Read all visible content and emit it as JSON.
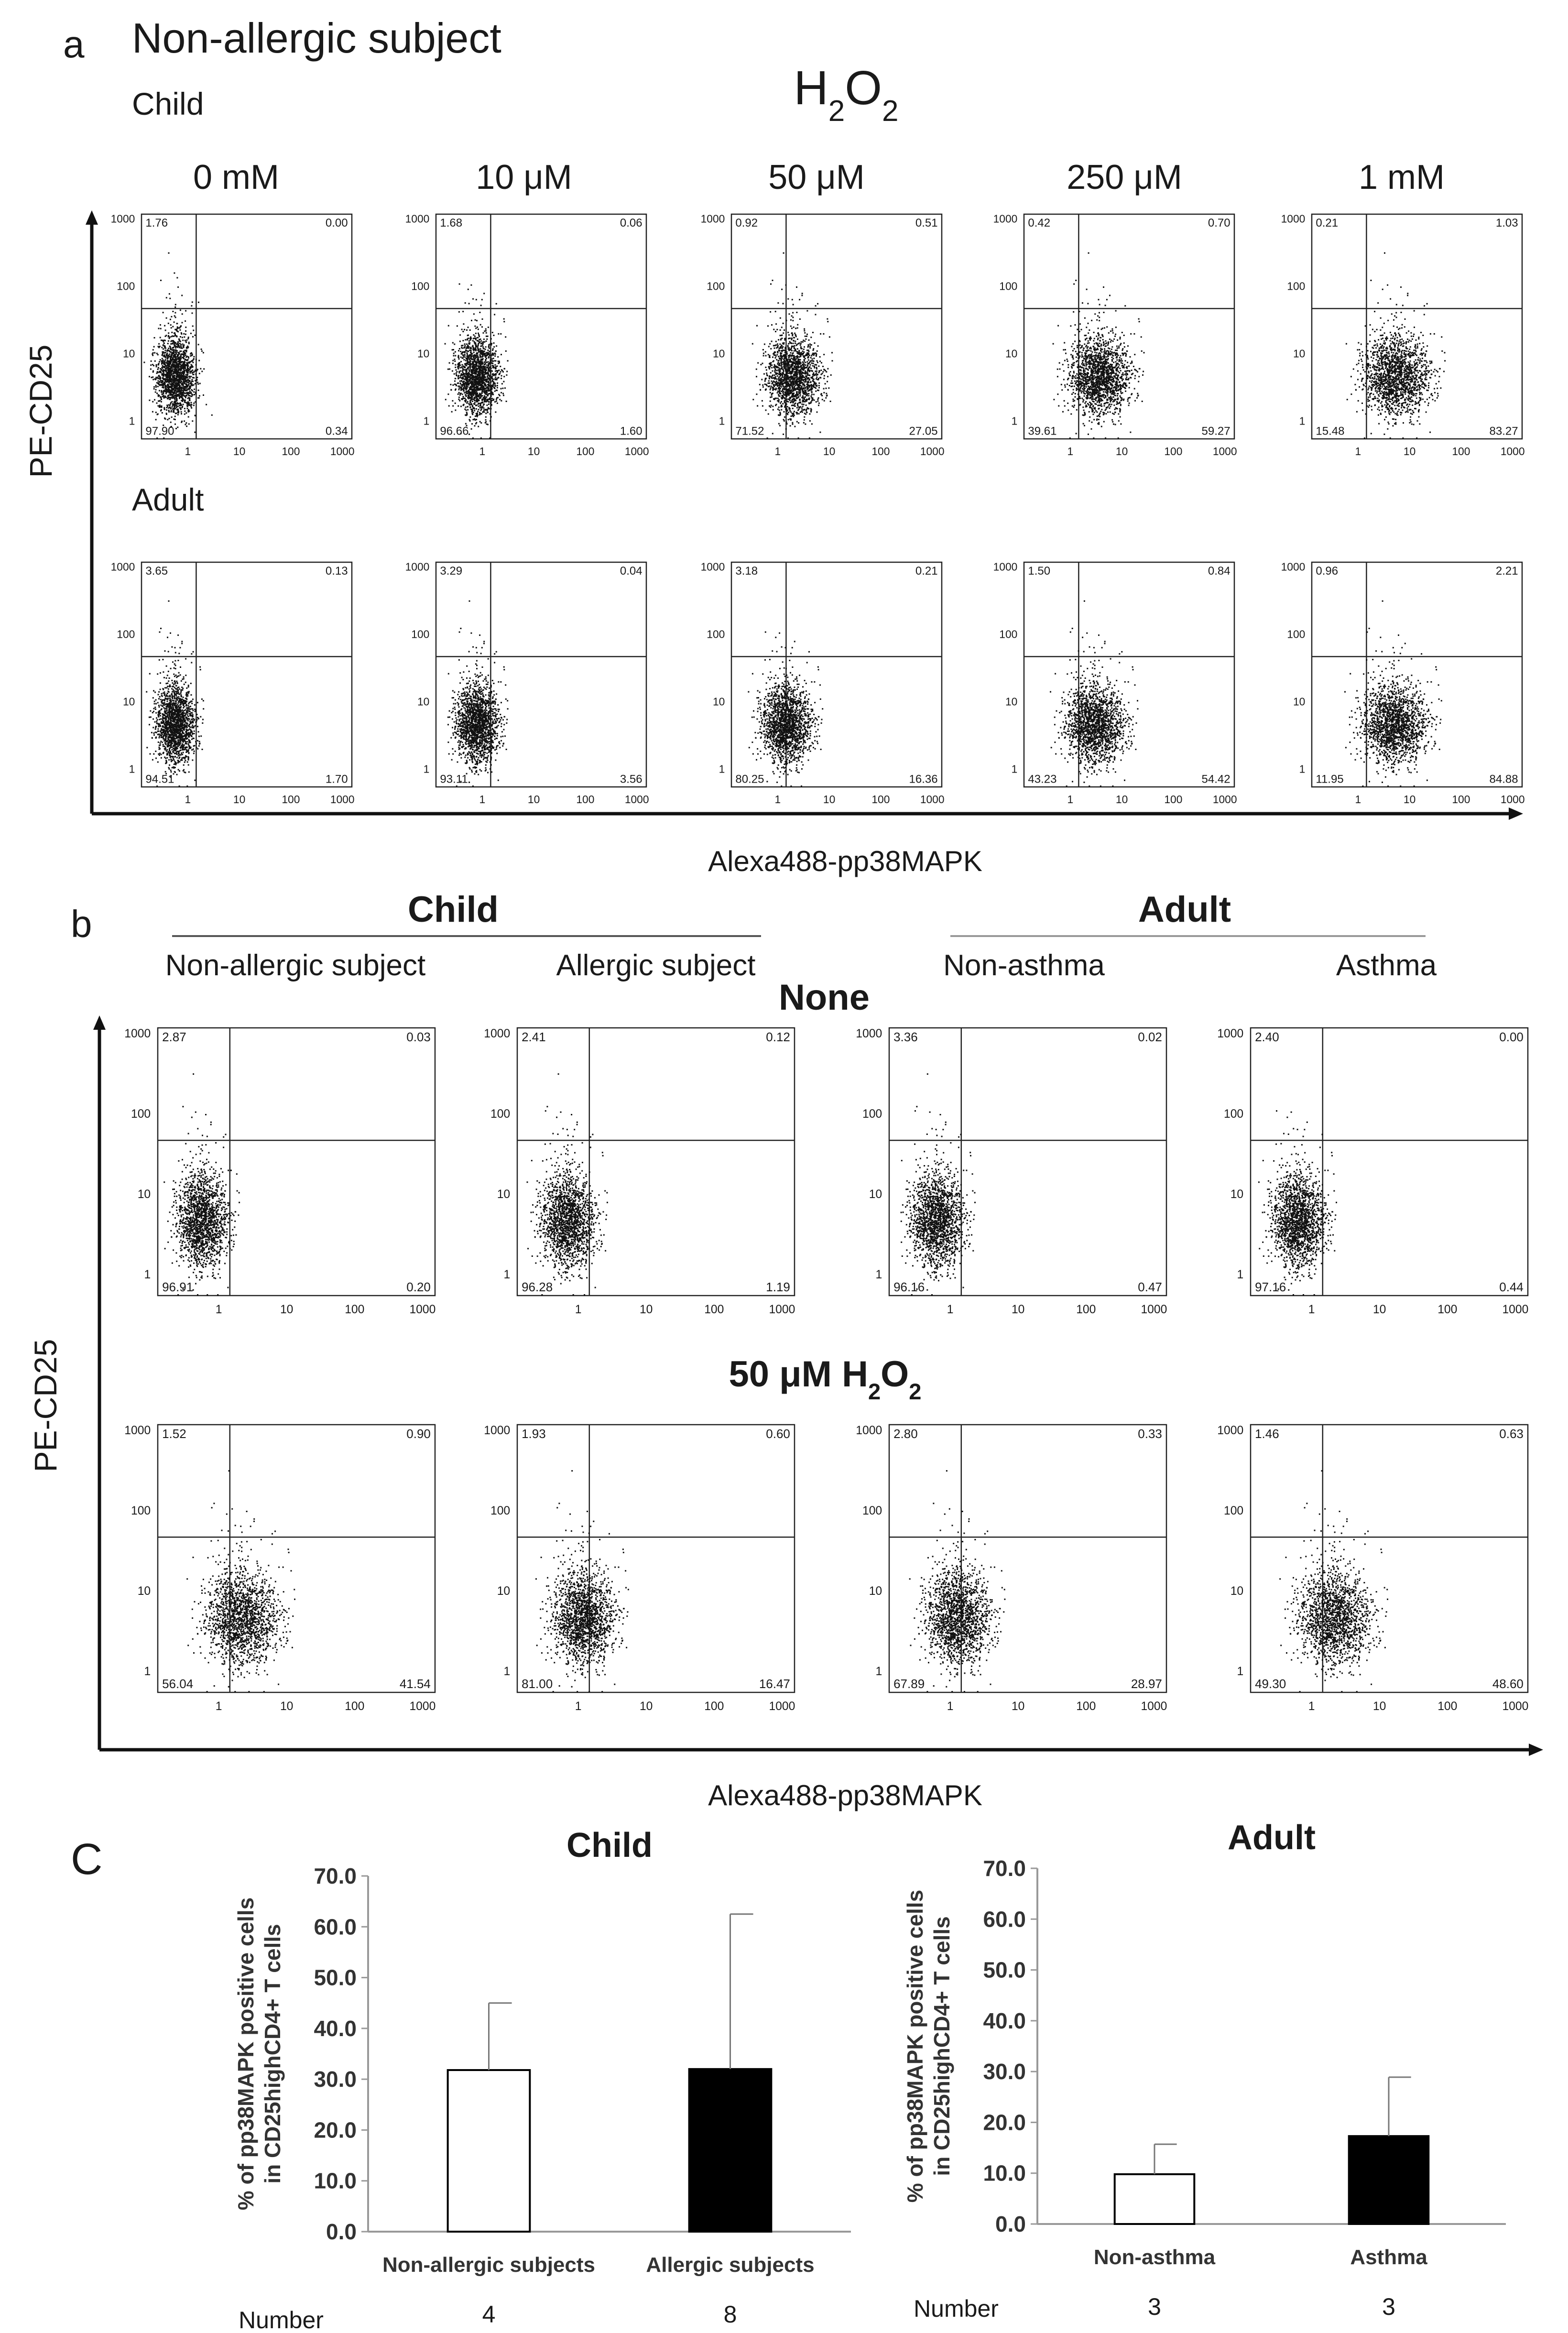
{
  "panel_a": {
    "letter": "a",
    "heading": "Non-allergic subject",
    "treatment": "H2O2",
    "rows": [
      "Child",
      "Adult"
    ],
    "doses": [
      "0 mM",
      "10 μM",
      "50 μM",
      "250 μM",
      "1 mM"
    ],
    "ylabel": "PE-CD25",
    "xlabel": "Alexa488-pp38MAPK",
    "quadrants": [
      [
        {
          "ul": "1.76",
          "ur": "0.00",
          "ll": "97.90",
          "lr": "0.34"
        },
        {
          "ul": "1.68",
          "ur": "0.06",
          "ll": "96.66",
          "lr": "1.60"
        },
        {
          "ul": "0.92",
          "ur": "0.51",
          "ll": "71.52",
          "lr": "27.05"
        },
        {
          "ul": "0.42",
          "ur": "0.70",
          "ll": "39.61",
          "lr": "59.27"
        },
        {
          "ul": "0.21",
          "ur": "1.03",
          "ll": "15.48",
          "lr": "83.27"
        }
      ],
      [
        {
          "ul": "3.65",
          "ur": "0.13",
          "ll": "94.51",
          "lr": "1.70"
        },
        {
          "ul": "3.29",
          "ur": "0.04",
          "ll": "93.11",
          "lr": "3.56"
        },
        {
          "ul": "3.18",
          "ur": "0.21",
          "ll": "80.25",
          "lr": "16.36"
        },
        {
          "ul": "1.50",
          "ur": "0.84",
          "ll": "43.23",
          "lr": "54.42"
        },
        {
          "ul": "0.96",
          "ur": "2.21",
          "ll": "11.95",
          "lr": "84.88"
        }
      ]
    ]
  },
  "panel_b": {
    "letter": "b",
    "group_child": "Child",
    "group_adult": "Adult",
    "columns": [
      "Non-allergic subject",
      "Allergic subject",
      "Non-asthma",
      "Asthma"
    ],
    "conditions": [
      "None",
      "50 μM H2O2"
    ],
    "ylabel": "PE-CD25",
    "xlabel": "Alexa488-pp38MAPK",
    "quadrants": [
      [
        {
          "ul": "2.87",
          "ur": "0.03",
          "ll": "96.91",
          "lr": "0.20"
        },
        {
          "ul": "2.41",
          "ur": "0.12",
          "ll": "96.28",
          "lr": "1.19"
        },
        {
          "ul": "3.36",
          "ur": "0.02",
          "ll": "96.16",
          "lr": "0.47"
        },
        {
          "ul": "2.40",
          "ur": "0.00",
          "ll": "97.16",
          "lr": "0.44"
        }
      ],
      [
        {
          "ul": "1.52",
          "ur": "0.90",
          "ll": "56.04",
          "lr": "41.54"
        },
        {
          "ul": "1.93",
          "ur": "0.60",
          "ll": "81.00",
          "lr": "16.47"
        },
        {
          "ul": "2.80",
          "ur": "0.33",
          "ll": "67.89",
          "lr": "28.97"
        },
        {
          "ul": "1.46",
          "ur": "0.63",
          "ll": "49.30",
          "lr": "48.60"
        }
      ]
    ]
  },
  "axis_ticks": {
    "y": [
      "1000",
      "100",
      "10",
      "1"
    ],
    "x": [
      "1",
      "10",
      "100",
      "1000"
    ]
  },
  "panel_c": {
    "letter": "C",
    "number_label": "Number",
    "ylabel_line1": "% of pp38MAPK positive cells",
    "ylabel_line2": "in CD25highCD4+ T cells",
    "ytick_labels": [
      "0.0",
      "10.0",
      "20.0",
      "30.0",
      "40.0",
      "50.0",
      "60.0",
      "70.0"
    ]
  },
  "chart_data": [
    {
      "type": "bar",
      "title": "Child",
      "categories": [
        "Non-allergic subjects",
        "Allergic subjects"
      ],
      "values": [
        31.8,
        32.0
      ],
      "errors": [
        13.2,
        30.5
      ],
      "fills": [
        "#ffffff",
        "#000000"
      ],
      "numbers": [
        "4",
        "8"
      ],
      "ylim": [
        0,
        70
      ],
      "xlabel": "",
      "ylabel": "% of pp38MAPK positive cells in CD25highCD4+ T cells"
    },
    {
      "type": "bar",
      "title": "Adult",
      "categories": [
        "Non-asthma",
        "Asthma"
      ],
      "values": [
        9.8,
        17.3
      ],
      "errors": [
        5.9,
        11.6
      ],
      "fills": [
        "#ffffff",
        "#000000"
      ],
      "numbers": [
        "3",
        "3"
      ],
      "ylim": [
        0,
        70
      ],
      "xlabel": "",
      "ylabel": "% of pp38MAPK positive cells in CD25highCD4+ T cells"
    }
  ]
}
